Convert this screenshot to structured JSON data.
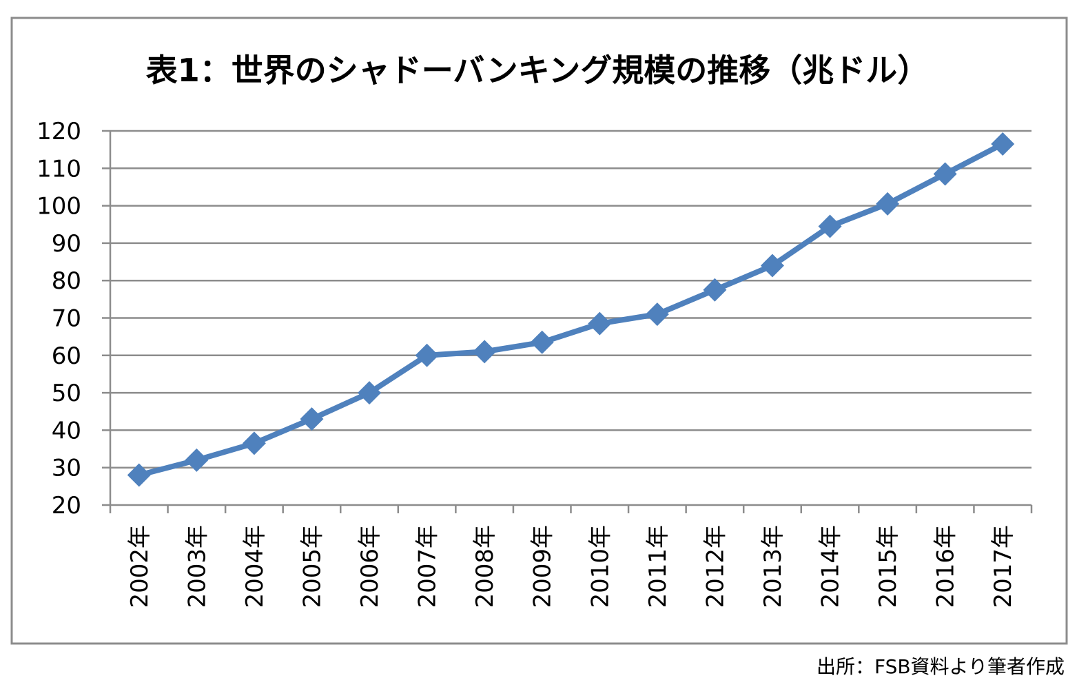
{
  "chart_data": {
    "type": "line",
    "title": "表1：世界のシャドーバンキング規模の推移（兆ドル）",
    "categories": [
      "2002年",
      "2003年",
      "2004年",
      "2005年",
      "2006年",
      "2007年",
      "2008年",
      "2009年",
      "2010年",
      "2011年",
      "2012年",
      "2013年",
      "2014年",
      "2015年",
      "2016年",
      "2017年"
    ],
    "series": [
      {
        "values": [
          28,
          32,
          36.5,
          43,
          50,
          60,
          61,
          63.5,
          68.5,
          71,
          77.5,
          84,
          94.5,
          100.5,
          108.5,
          116.5
        ],
        "color": "#4f81bd",
        "marker": "diamond"
      }
    ],
    "ylim": [
      20,
      120
    ],
    "yticks": [
      20,
      30,
      40,
      50,
      60,
      70,
      80,
      90,
      100,
      110,
      120
    ],
    "xlabel": "",
    "ylabel": "",
    "grid": true,
    "legend": "none"
  },
  "source_note": "出所：FSB資料より筆者作成"
}
